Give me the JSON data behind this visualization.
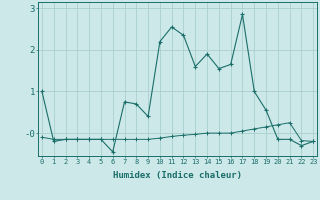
{
  "xlabel": "Humidex (Indice chaleur)",
  "background_color": "#cce8e8",
  "line_color": "#1a6e6a",
  "grid_color": "#aacece",
  "x": [
    0,
    1,
    2,
    3,
    4,
    5,
    6,
    7,
    8,
    9,
    10,
    11,
    12,
    13,
    14,
    15,
    16,
    17,
    18,
    19,
    20,
    21,
    22,
    23
  ],
  "y_main": [
    1.0,
    -0.2,
    -0.15,
    -0.15,
    -0.15,
    -0.15,
    -0.45,
    0.75,
    0.7,
    0.4,
    2.2,
    2.55,
    2.35,
    1.6,
    1.9,
    1.55,
    1.65,
    2.85,
    1.0,
    0.55,
    -0.15,
    -0.15,
    -0.3,
    -0.2
  ],
  "y_trend": [
    -0.1,
    -0.15,
    -0.15,
    -0.15,
    -0.15,
    -0.15,
    -0.15,
    -0.15,
    -0.15,
    -0.15,
    -0.12,
    -0.08,
    -0.05,
    -0.03,
    0.0,
    0.0,
    0.0,
    0.05,
    0.1,
    0.15,
    0.2,
    0.25,
    -0.18,
    -0.2
  ],
  "ylim": [
    -0.55,
    3.15
  ],
  "xlim": [
    -0.3,
    23.3
  ]
}
